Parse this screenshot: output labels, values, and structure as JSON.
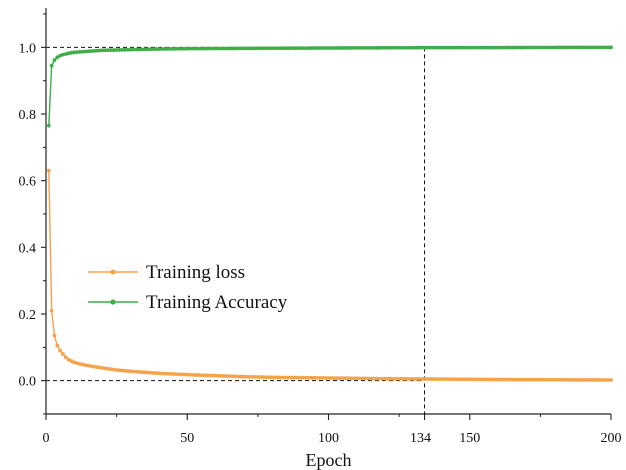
{
  "chart_data": {
    "type": "line",
    "xlabel": "Epoch",
    "ylabel": "",
    "xlim": [
      0,
      200
    ],
    "ylim": [
      -0.1,
      1.1
    ],
    "x_ticks": [
      0,
      50,
      100,
      150,
      200
    ],
    "y_ticks": [
      0.0,
      0.2,
      0.4,
      0.6,
      0.8,
      1.0
    ],
    "y_tick_labels": [
      "0.0",
      "0.2",
      "0.4",
      "0.6",
      "0.8",
      "1.0"
    ],
    "annotations": {
      "vertical_line_x": 134,
      "vertical_line_label": "134",
      "horizontal_lines_y": [
        1.0,
        0.0
      ]
    },
    "legend": {
      "placement": "center-left"
    },
    "series": [
      {
        "name": "Training loss",
        "color": "#f5a34a",
        "values_by_epoch": {
          "1": 0.63,
          "2": 0.21,
          "3": 0.135,
          "4": 0.105,
          "5": 0.09,
          "6": 0.08,
          "7": 0.07,
          "8": 0.063,
          "10": 0.055,
          "12": 0.05,
          "15": 0.045,
          "20": 0.038,
          "25": 0.032,
          "30": 0.028,
          "35": 0.025,
          "40": 0.022,
          "45": 0.02,
          "50": 0.018,
          "60": 0.015,
          "70": 0.012,
          "80": 0.01,
          "90": 0.009,
          "100": 0.008,
          "110": 0.007,
          "120": 0.006,
          "134": 0.005,
          "150": 0.004,
          "170": 0.003,
          "200": 0.002
        }
      },
      {
        "name": "Training Accuracy",
        "color": "#3fae49",
        "values_by_epoch": {
          "1": 0.765,
          "2": 0.945,
          "3": 0.962,
          "4": 0.97,
          "5": 0.975,
          "6": 0.978,
          "8": 0.982,
          "10": 0.985,
          "15": 0.988,
          "20": 0.991,
          "30": 0.993,
          "40": 0.995,
          "50": 0.996,
          "75": 0.997,
          "100": 0.998,
          "134": 0.999,
          "150": 0.999,
          "200": 1.0
        }
      }
    ]
  }
}
